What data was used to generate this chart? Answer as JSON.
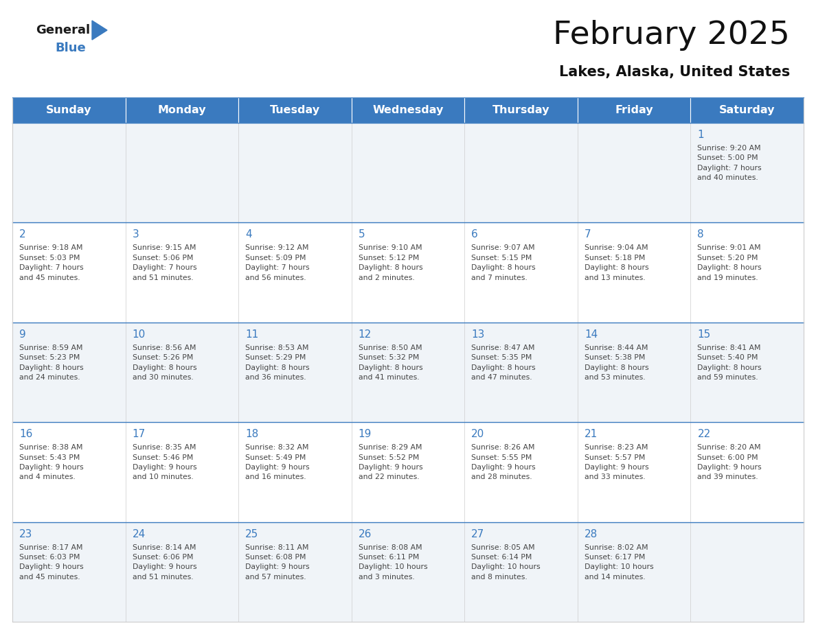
{
  "title": "February 2025",
  "subtitle": "Lakes, Alaska, United States",
  "header_color": "#3a7abf",
  "header_text_color": "#ffffff",
  "cell_bg_color_light": "#f0f4f8",
  "cell_bg_color_white": "#ffffff",
  "day_number_color": "#3a7abf",
  "text_color": "#444444",
  "border_color": "#3a7abf",
  "cell_border_color": "#cccccc",
  "days_of_week": [
    "Sunday",
    "Monday",
    "Tuesday",
    "Wednesday",
    "Thursday",
    "Friday",
    "Saturday"
  ],
  "weeks": [
    [
      {
        "day": "",
        "info": ""
      },
      {
        "day": "",
        "info": ""
      },
      {
        "day": "",
        "info": ""
      },
      {
        "day": "",
        "info": ""
      },
      {
        "day": "",
        "info": ""
      },
      {
        "day": "",
        "info": ""
      },
      {
        "day": "1",
        "info": "Sunrise: 9:20 AM\nSunset: 5:00 PM\nDaylight: 7 hours\nand 40 minutes."
      }
    ],
    [
      {
        "day": "2",
        "info": "Sunrise: 9:18 AM\nSunset: 5:03 PM\nDaylight: 7 hours\nand 45 minutes."
      },
      {
        "day": "3",
        "info": "Sunrise: 9:15 AM\nSunset: 5:06 PM\nDaylight: 7 hours\nand 51 minutes."
      },
      {
        "day": "4",
        "info": "Sunrise: 9:12 AM\nSunset: 5:09 PM\nDaylight: 7 hours\nand 56 minutes."
      },
      {
        "day": "5",
        "info": "Sunrise: 9:10 AM\nSunset: 5:12 PM\nDaylight: 8 hours\nand 2 minutes."
      },
      {
        "day": "6",
        "info": "Sunrise: 9:07 AM\nSunset: 5:15 PM\nDaylight: 8 hours\nand 7 minutes."
      },
      {
        "day": "7",
        "info": "Sunrise: 9:04 AM\nSunset: 5:18 PM\nDaylight: 8 hours\nand 13 minutes."
      },
      {
        "day": "8",
        "info": "Sunrise: 9:01 AM\nSunset: 5:20 PM\nDaylight: 8 hours\nand 19 minutes."
      }
    ],
    [
      {
        "day": "9",
        "info": "Sunrise: 8:59 AM\nSunset: 5:23 PM\nDaylight: 8 hours\nand 24 minutes."
      },
      {
        "day": "10",
        "info": "Sunrise: 8:56 AM\nSunset: 5:26 PM\nDaylight: 8 hours\nand 30 minutes."
      },
      {
        "day": "11",
        "info": "Sunrise: 8:53 AM\nSunset: 5:29 PM\nDaylight: 8 hours\nand 36 minutes."
      },
      {
        "day": "12",
        "info": "Sunrise: 8:50 AM\nSunset: 5:32 PM\nDaylight: 8 hours\nand 41 minutes."
      },
      {
        "day": "13",
        "info": "Sunrise: 8:47 AM\nSunset: 5:35 PM\nDaylight: 8 hours\nand 47 minutes."
      },
      {
        "day": "14",
        "info": "Sunrise: 8:44 AM\nSunset: 5:38 PM\nDaylight: 8 hours\nand 53 minutes."
      },
      {
        "day": "15",
        "info": "Sunrise: 8:41 AM\nSunset: 5:40 PM\nDaylight: 8 hours\nand 59 minutes."
      }
    ],
    [
      {
        "day": "16",
        "info": "Sunrise: 8:38 AM\nSunset: 5:43 PM\nDaylight: 9 hours\nand 4 minutes."
      },
      {
        "day": "17",
        "info": "Sunrise: 8:35 AM\nSunset: 5:46 PM\nDaylight: 9 hours\nand 10 minutes."
      },
      {
        "day": "18",
        "info": "Sunrise: 8:32 AM\nSunset: 5:49 PM\nDaylight: 9 hours\nand 16 minutes."
      },
      {
        "day": "19",
        "info": "Sunrise: 8:29 AM\nSunset: 5:52 PM\nDaylight: 9 hours\nand 22 minutes."
      },
      {
        "day": "20",
        "info": "Sunrise: 8:26 AM\nSunset: 5:55 PM\nDaylight: 9 hours\nand 28 minutes."
      },
      {
        "day": "21",
        "info": "Sunrise: 8:23 AM\nSunset: 5:57 PM\nDaylight: 9 hours\nand 33 minutes."
      },
      {
        "day": "22",
        "info": "Sunrise: 8:20 AM\nSunset: 6:00 PM\nDaylight: 9 hours\nand 39 minutes."
      }
    ],
    [
      {
        "day": "23",
        "info": "Sunrise: 8:17 AM\nSunset: 6:03 PM\nDaylight: 9 hours\nand 45 minutes."
      },
      {
        "day": "24",
        "info": "Sunrise: 8:14 AM\nSunset: 6:06 PM\nDaylight: 9 hours\nand 51 minutes."
      },
      {
        "day": "25",
        "info": "Sunrise: 8:11 AM\nSunset: 6:08 PM\nDaylight: 9 hours\nand 57 minutes."
      },
      {
        "day": "26",
        "info": "Sunrise: 8:08 AM\nSunset: 6:11 PM\nDaylight: 10 hours\nand 3 minutes."
      },
      {
        "day": "27",
        "info": "Sunrise: 8:05 AM\nSunset: 6:14 PM\nDaylight: 10 hours\nand 8 minutes."
      },
      {
        "day": "28",
        "info": "Sunrise: 8:02 AM\nSunset: 6:17 PM\nDaylight: 10 hours\nand 14 minutes."
      },
      {
        "day": "",
        "info": ""
      }
    ]
  ],
  "logo_text_general": "General",
  "logo_text_blue": "Blue",
  "logo_color_general": "#1a1a1a",
  "logo_color_blue": "#3a7abf",
  "logo_triangle_color": "#3a7abf",
  "fig_width": 11.88,
  "fig_height": 9.18,
  "dpi": 100
}
